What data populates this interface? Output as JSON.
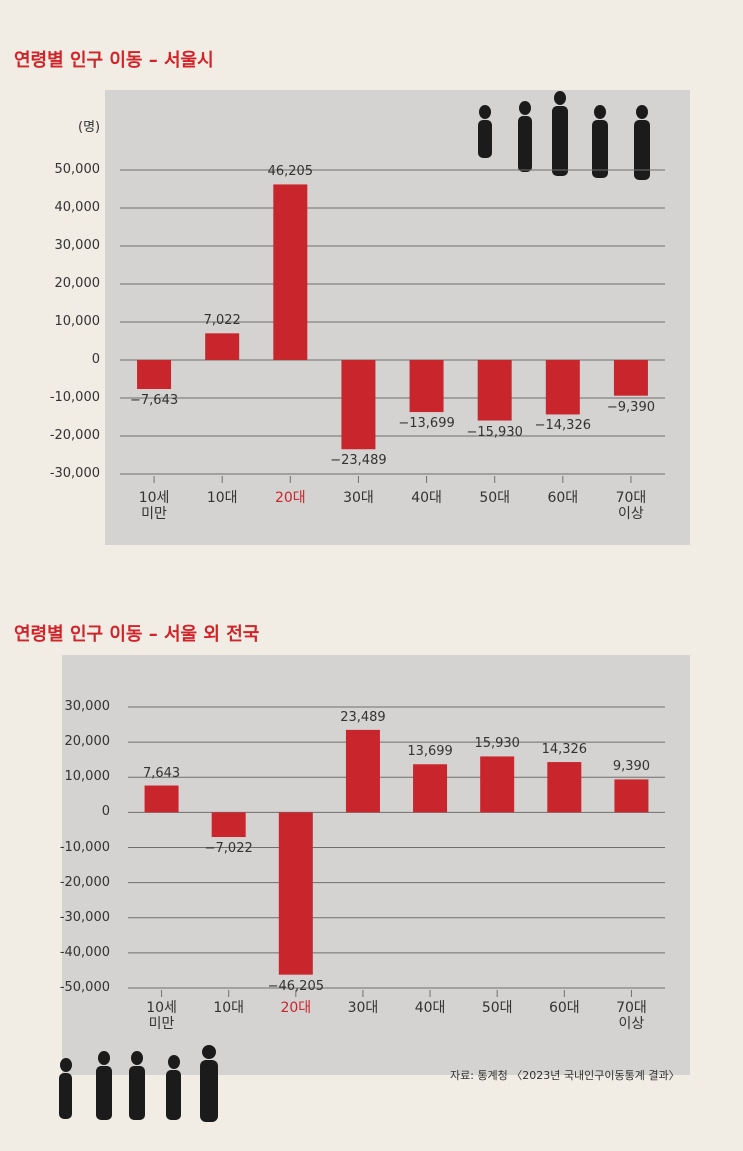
{
  "chart_data": [
    {
      "type": "bar",
      "title": "연령별 인구 이동 – 서울시",
      "unit_label": "(명)",
      "categories": [
        "10세\n미만",
        "10대",
        "20대",
        "30대",
        "40대",
        "50대",
        "60대",
        "70대\n이상"
      ],
      "category_label_colors": [
        "#333333",
        "#333333",
        "#c8262c",
        "#333333",
        "#333333",
        "#333333",
        "#333333",
        "#333333"
      ],
      "values": [
        -7643,
        7022,
        46205,
        -23489,
        -13699,
        -15930,
        -14326,
        -9390
      ],
      "value_labels": [
        "−7,643",
        "7,022",
        "46,205",
        "−23,489",
        "−13,699",
        "−15,930",
        "−14,326",
        "−9,390"
      ],
      "color": "#c8262c",
      "ylim": [
        -30000,
        50000
      ],
      "yticks": [
        {
          "value": -30000,
          "label": "-30,000"
        },
        {
          "value": -20000,
          "label": "-20,000"
        },
        {
          "value": -10000,
          "label": "-10,000"
        },
        0,
        {
          "value": 10000,
          "label": "10,000"
        },
        {
          "value": 20000,
          "label": "20,000"
        },
        {
          "value": 30000,
          "label": "30,000"
        },
        {
          "value": 40000,
          "label": "40,000"
        },
        {
          "value": 50000,
          "label": "50,000"
        }
      ],
      "grid": true
    },
    {
      "type": "bar",
      "title": "연령별 인구 이동 – 서울 외 전국",
      "categories": [
        "10세\n미만",
        "10대",
        "20대",
        "30대",
        "40대",
        "50대",
        "60대",
        "70대\n이상"
      ],
      "category_label_colors": [
        "#333333",
        "#333333",
        "#c8262c",
        "#333333",
        "#333333",
        "#333333",
        "#333333",
        "#333333"
      ],
      "values": [
        7643,
        -7022,
        -46205,
        23489,
        13699,
        15930,
        14326,
        9390
      ],
      "value_labels": [
        "7,643",
        "−7,022",
        "−46,205",
        "23,489",
        "13,699",
        "15,930",
        "14,326",
        "9,390"
      ],
      "color": "#c8262c",
      "ylim": [
        -50000,
        30000
      ],
      "yticks": [
        {
          "value": -50000,
          "label": "-50,000"
        },
        {
          "value": -40000,
          "label": "-40,000"
        },
        {
          "value": -30000,
          "label": "-30,000"
        },
        {
          "value": -20000,
          "label": "-20,000"
        },
        {
          "value": -10000,
          "label": "-10,000"
        },
        0,
        {
          "value": 10000,
          "label": "10,000"
        },
        {
          "value": 20000,
          "label": "20,000"
        },
        {
          "value": 30000,
          "label": "30,000"
        }
      ],
      "grid": true,
      "source": "자료: 통계청 〈2023년 국내인구이동통계 결과〉"
    }
  ]
}
